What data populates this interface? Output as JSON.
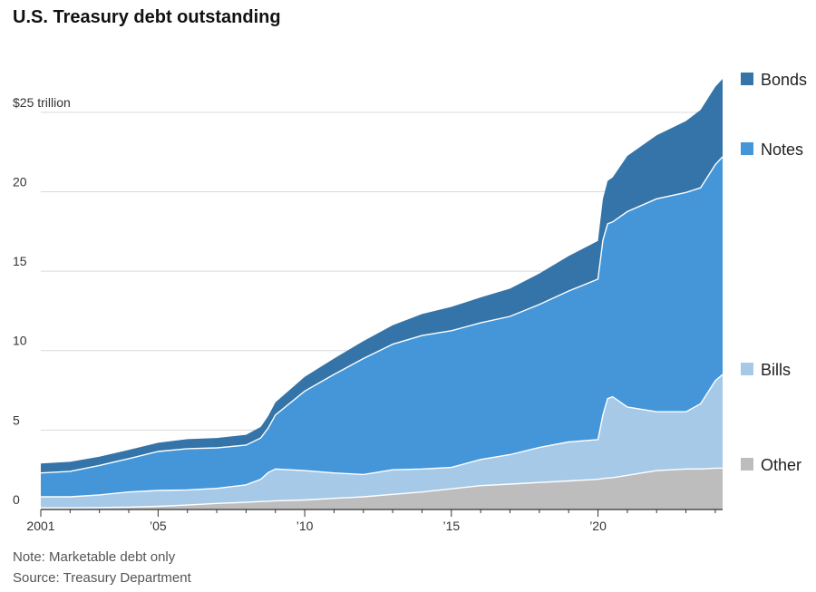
{
  "title": "U.S. Treasury debt outstanding",
  "note": "Note: Marketable debt only",
  "source": "Source: Treasury Department",
  "colors": {
    "Other": "#bdbdbd",
    "Bills": "#a6c9e8",
    "Notes": "#4496d8",
    "Bonds": "#3574a8",
    "grid": "#d9d9d9",
    "axis": "#333333"
  },
  "chart_data": {
    "type": "area",
    "stacked": true,
    "title": "U.S. Treasury debt outstanding",
    "xlim": [
      2001,
      2024.25
    ],
    "ylim": [
      0,
      27.5
    ],
    "ytick_values": [
      0,
      5,
      10,
      15,
      20,
      25
    ],
    "ytick_labels": [
      "0",
      "5",
      "10",
      "15",
      "20",
      "$25 trillion"
    ],
    "xtick_values": [
      2001,
      2005,
      2010,
      2015,
      2020
    ],
    "xtick_labels": [
      "2001",
      "’05",
      "’10",
      "’15",
      "’20"
    ],
    "grid": true,
    "legend_placement": "right",
    "x": [
      2001,
      2002,
      2003,
      2004,
      2005,
      2006,
      2007,
      2008,
      2008.5,
      2008.75,
      2009,
      2010,
      2011,
      2012,
      2013,
      2014,
      2015,
      2016,
      2017,
      2018,
      2019,
      2020,
      2020.17,
      2020.33,
      2020.5,
      2021,
      2022,
      2023,
      2023.5,
      2024.0,
      2024.25
    ],
    "series": [
      {
        "name": "Other",
        "values": [
          0.1,
          0.1,
          0.12,
          0.15,
          0.2,
          0.28,
          0.38,
          0.45,
          0.5,
          0.52,
          0.55,
          0.6,
          0.7,
          0.8,
          0.95,
          1.1,
          1.3,
          1.5,
          1.6,
          1.7,
          1.8,
          1.9,
          1.95,
          1.98,
          2.0,
          2.15,
          2.45,
          2.55,
          2.55,
          2.6,
          2.6
        ]
      },
      {
        "name": "Bills",
        "values": [
          0.7,
          0.7,
          0.8,
          0.95,
          1.0,
          0.95,
          0.95,
          1.1,
          1.4,
          1.8,
          2.0,
          1.85,
          1.6,
          1.4,
          1.55,
          1.45,
          1.35,
          1.65,
          1.85,
          2.2,
          2.45,
          2.5,
          4.0,
          5.0,
          5.1,
          4.3,
          3.7,
          3.6,
          4.1,
          5.5,
          5.9
        ]
      },
      {
        "name": "Notes",
        "values": [
          1.5,
          1.6,
          1.85,
          2.1,
          2.45,
          2.6,
          2.55,
          2.5,
          2.6,
          2.8,
          3.4,
          5.0,
          6.2,
          7.3,
          7.9,
          8.4,
          8.6,
          8.6,
          8.7,
          9.0,
          9.5,
          10.1,
          11.0,
          11.0,
          11.0,
          12.3,
          13.4,
          13.8,
          13.6,
          13.6,
          13.7
        ]
      },
      {
        "name": "Bonds",
        "values": [
          0.6,
          0.6,
          0.55,
          0.55,
          0.55,
          0.6,
          0.62,
          0.65,
          0.7,
          0.75,
          0.8,
          0.9,
          1.0,
          1.1,
          1.2,
          1.35,
          1.5,
          1.6,
          1.75,
          1.95,
          2.2,
          2.4,
          2.6,
          2.7,
          2.8,
          3.5,
          4.0,
          4.5,
          4.9,
          4.9,
          4.9
        ]
      }
    ]
  }
}
